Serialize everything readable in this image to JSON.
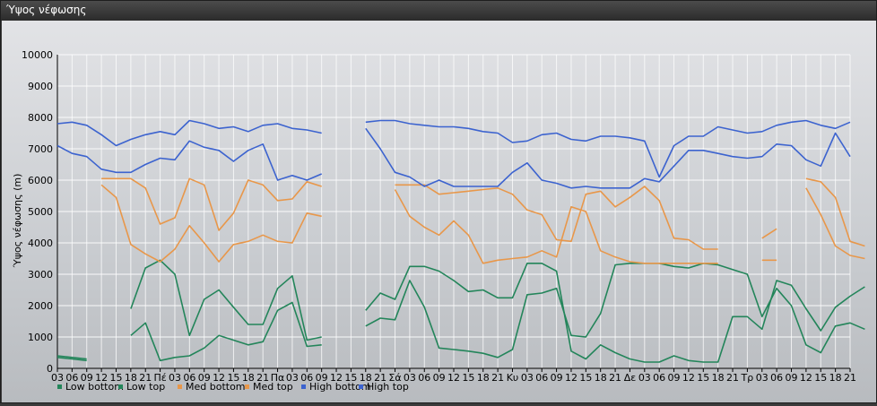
{
  "window": {
    "title": "Ύψος νέφωσης"
  },
  "colors": {
    "low": "#23855a",
    "med": "#e8974a",
    "high": "#3c63cf",
    "grid": "#ffffff",
    "axis": "#000000"
  },
  "chart_data": {
    "type": "line",
    "title": "",
    "xlabel": "",
    "ylabel": "Ύψος νέφωσης (m)",
    "ylim": [
      0,
      10000
    ],
    "yticks": [
      0,
      1000,
      2000,
      3000,
      4000,
      5000,
      6000,
      7000,
      8000,
      9000,
      10000
    ],
    "grid": true,
    "legend_position": "bottom-left",
    "x_tick_labels": [
      "03",
      "06",
      "09",
      "12",
      "15",
      "18",
      "21",
      "Πέ",
      "03",
      "06",
      "09",
      "12",
      "15",
      "18",
      "21",
      "Πα",
      "03",
      "06",
      "09",
      "12",
      "15",
      "18",
      "21",
      "Σά",
      "03",
      "06",
      "09",
      "12",
      "15",
      "18",
      "21",
      "Κυ",
      "03",
      "06",
      "09",
      "12",
      "15",
      "18",
      "21",
      "Δε",
      "03",
      "06",
      "09",
      "12",
      "15",
      "18",
      "21",
      "Τρ",
      "03",
      "06",
      "09",
      "12",
      "15",
      "18",
      "21"
    ],
    "series": [
      {
        "name": "Low bottom",
        "color_key": "low",
        "values": [
          350,
          300,
          250,
          null,
          null,
          1050,
          1450,
          250,
          350,
          400,
          650,
          1050,
          900,
          750,
          850,
          1850,
          2100,
          700,
          750,
          null,
          null,
          1350,
          1600,
          1550,
          2800,
          1950,
          650,
          600,
          550,
          480,
          350,
          600,
          2350,
          2400,
          2550,
          1050,
          1000,
          1750,
          3300,
          3350,
          3350,
          3350,
          3250,
          3200,
          3350,
          3300,
          3150,
          3000,
          1650,
          2550,
          2000,
          750,
          500,
          1350,
          1450,
          1250
        ]
      },
      {
        "name": "Low top",
        "color_key": "low",
        "values": [
          400,
          350,
          300,
          null,
          null,
          1900,
          3200,
          3450,
          3000,
          1050,
          2200,
          2500,
          1950,
          1400,
          1400,
          2550,
          2950,
          900,
          1000,
          null,
          null,
          1850,
          2400,
          2200,
          3250,
          3250,
          3100,
          2800,
          2450,
          2500,
          2250,
          2250,
          3350,
          3350,
          3100,
          550,
          300,
          750,
          500,
          300,
          200,
          200,
          400,
          250,
          200,
          200,
          1650,
          1650,
          1250,
          2800,
          2650,
          1900,
          1200,
          1950,
          2300,
          2600
        ]
      },
      {
        "name": "Med bottom",
        "color_key": "med",
        "values": [
          null,
          null,
          null,
          5850,
          5450,
          3950,
          3650,
          3400,
          3800,
          4550,
          4000,
          3400,
          3950,
          4050,
          4250,
          4050,
          4000,
          4950,
          4850,
          null,
          null,
          null,
          null,
          5700,
          4850,
          4500,
          4250,
          4700,
          4250,
          3350,
          3450,
          3500,
          3550,
          3750,
          3550,
          5150,
          5000,
          3750,
          3550,
          3400,
          3350,
          3350,
          3350,
          3350,
          3350,
          3350,
          null,
          null,
          3450,
          3450,
          null,
          5750,
          4900,
          3900,
          3600,
          3500
        ]
      },
      {
        "name": "Med top",
        "color_key": "med",
        "values": [
          null,
          null,
          null,
          6050,
          6050,
          6050,
          5750,
          4600,
          4800,
          6050,
          5850,
          4400,
          4950,
          6000,
          5850,
          5350,
          5400,
          5950,
          5800,
          null,
          null,
          null,
          null,
          5850,
          5850,
          5850,
          5550,
          5600,
          5650,
          5700,
          5750,
          5550,
          5050,
          4900,
          4100,
          4050,
          5550,
          5650,
          5150,
          5450,
          5800,
          5350,
          4150,
          4100,
          3800,
          3800,
          null,
          null,
          4150,
          4450,
          null,
          6050,
          5950,
          5450,
          4050,
          3900
        ]
      },
      {
        "name": "High bottom",
        "color_key": "high",
        "values": [
          7100,
          6850,
          6750,
          6350,
          6250,
          6250,
          6500,
          6700,
          6650,
          7250,
          7050,
          6950,
          6600,
          6950,
          7150,
          6000,
          6150,
          6000,
          6200,
          null,
          null,
          7650,
          7000,
          6250,
          6100,
          5800,
          6000,
          5800,
          5800,
          5800,
          5800,
          6250,
          6550,
          6000,
          5900,
          5750,
          5800,
          5750,
          5750,
          5750,
          6050,
          5950,
          6450,
          6950,
          6950,
          6850,
          6750,
          6700,
          6750,
          7150,
          7100,
          6650,
          6450,
          7500,
          6750,
          null
        ]
      },
      {
        "name": "High top",
        "color_key": "high",
        "values": [
          7800,
          7850,
          7750,
          7450,
          7100,
          7300,
          7450,
          7550,
          7450,
          7900,
          7800,
          7650,
          7700,
          7550,
          7750,
          7800,
          7650,
          7600,
          7500,
          null,
          null,
          7850,
          7900,
          7900,
          7800,
          7750,
          7700,
          7700,
          7650,
          7550,
          7500,
          7200,
          7250,
          7450,
          7500,
          7300,
          7250,
          7400,
          7400,
          7350,
          7250,
          6100,
          7100,
          7400,
          7400,
          7700,
          7600,
          7500,
          7550,
          7750,
          7850,
          7900,
          7750,
          7650,
          7850,
          null
        ]
      }
    ]
  }
}
